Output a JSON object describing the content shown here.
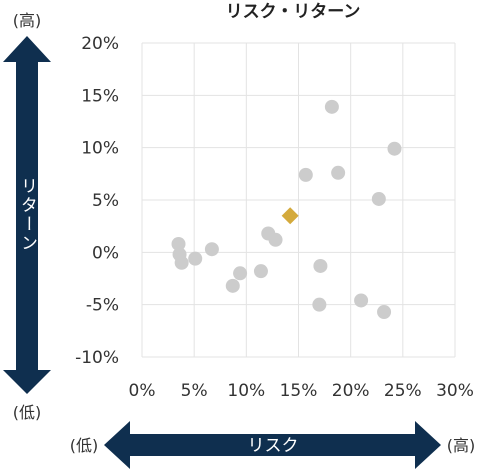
{
  "chart_data": {
    "type": "scatter",
    "title": "リスク・リターン",
    "xlabel": "リスク",
    "ylabel": "リターン",
    "x_low_label": "(低)",
    "x_high_label": "(高)",
    "y_low_label": "(低)",
    "y_high_label": "(高)",
    "xlim": [
      0,
      30
    ],
    "ylim": [
      -10,
      20
    ],
    "x_ticks": [
      "0%",
      "5%",
      "10%",
      "15%",
      "20%",
      "25%",
      "30%"
    ],
    "y_ticks": [
      "20%",
      "15%",
      "10%",
      "5%",
      "0%",
      "-5%",
      "-10%"
    ],
    "grid": true,
    "colors": {
      "points": "#cccccc",
      "highlight": "#d4aa3c",
      "arrow": "#0f2f4f"
    },
    "points": [
      {
        "x": 3.5,
        "y": 0.8
      },
      {
        "x": 3.6,
        "y": -0.2
      },
      {
        "x": 3.8,
        "y": -1.0
      },
      {
        "x": 5.1,
        "y": -0.6
      },
      {
        "x": 6.7,
        "y": 0.3
      },
      {
        "x": 8.7,
        "y": -3.2
      },
      {
        "x": 9.4,
        "y": -2.0
      },
      {
        "x": 11.4,
        "y": -1.8
      },
      {
        "x": 12.1,
        "y": 1.8
      },
      {
        "x": 12.8,
        "y": 1.2
      },
      {
        "x": 15.7,
        "y": 7.4
      },
      {
        "x": 17.1,
        "y": -1.3
      },
      {
        "x": 17.0,
        "y": -5.0
      },
      {
        "x": 18.2,
        "y": 13.9
      },
      {
        "x": 18.8,
        "y": 7.6
      },
      {
        "x": 21.0,
        "y": -4.6
      },
      {
        "x": 22.7,
        "y": 5.1
      },
      {
        "x": 23.2,
        "y": -5.7
      },
      {
        "x": 24.2,
        "y": 9.9
      }
    ],
    "highlight": {
      "x": 14.2,
      "y": 3.5
    }
  }
}
